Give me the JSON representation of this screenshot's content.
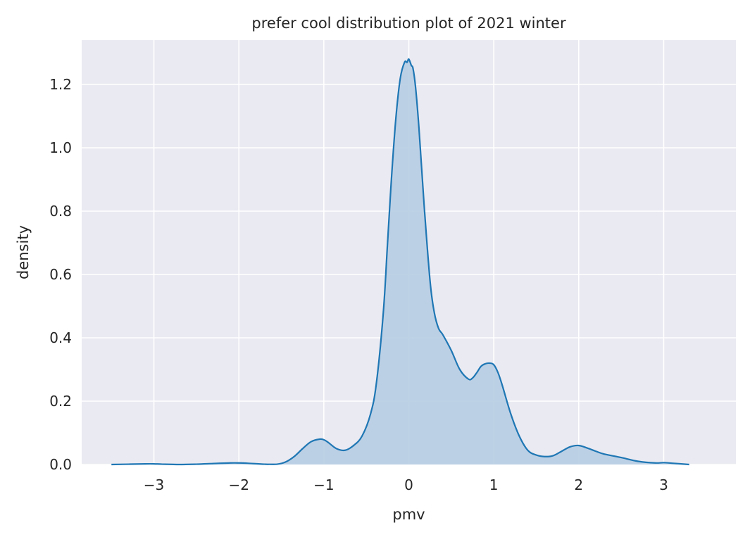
{
  "chart_data": {
    "type": "area",
    "title": "prefer cool distribution plot of 2021 winter",
    "xlabel": "pmv",
    "ylabel": "density",
    "xlim": [
      -3.85,
      3.85
    ],
    "ylim": [
      0,
      1.34
    ],
    "xticks": [
      -3,
      -2,
      -1,
      0,
      1,
      2,
      3
    ],
    "xtick_labels": [
      "−3",
      "−2",
      "−1",
      "0",
      "1",
      "2",
      "3"
    ],
    "yticks": [
      0.0,
      0.2,
      0.4,
      0.6,
      0.8,
      1.0,
      1.2
    ],
    "ytick_labels": [
      "0.0",
      "0.2",
      "0.4",
      "0.6",
      "0.8",
      "1.0",
      "1.2"
    ],
    "grid": true,
    "background_color": "#eaeaf2",
    "line_color": "#1f77b4",
    "fill_color": "#b7cde3",
    "series": [
      {
        "x": [
          -3.5,
          -3.3,
          -3.1,
          -3.0,
          -2.9,
          -2.7,
          -2.5,
          -2.3,
          -2.1,
          -2.0,
          -1.9,
          -1.7,
          -1.55,
          -1.45,
          -1.35,
          -1.25,
          -1.15,
          -1.05,
          -1.0,
          -0.95,
          -0.85,
          -0.75,
          -0.65,
          -0.55,
          -0.45,
          -0.38,
          -0.3,
          -0.25,
          -0.2,
          -0.15,
          -0.1,
          -0.05,
          -0.02,
          0.0,
          0.03,
          0.05,
          0.08,
          0.12,
          0.18,
          0.25,
          0.3,
          0.35,
          0.4,
          0.5,
          0.6,
          0.7,
          0.75,
          0.8,
          0.85,
          0.9,
          0.95,
          1.0,
          1.05,
          1.1,
          1.2,
          1.3,
          1.4,
          1.5,
          1.6,
          1.7,
          1.8,
          1.9,
          2.0,
          2.1,
          2.2,
          2.3,
          2.5,
          2.7,
          2.9,
          3.0,
          3.1,
          3.3
        ],
        "y": [
          0.0,
          0.001,
          0.002,
          0.002,
          0.001,
          0.0,
          0.001,
          0.003,
          0.005,
          0.005,
          0.004,
          0.001,
          0.001,
          0.008,
          0.025,
          0.05,
          0.072,
          0.08,
          0.078,
          0.07,
          0.05,
          0.045,
          0.06,
          0.09,
          0.16,
          0.26,
          0.48,
          0.7,
          0.92,
          1.1,
          1.22,
          1.27,
          1.27,
          1.28,
          1.26,
          1.25,
          1.19,
          1.06,
          0.82,
          0.58,
          0.48,
          0.43,
          0.41,
          0.36,
          0.3,
          0.27,
          0.273,
          0.29,
          0.31,
          0.318,
          0.32,
          0.315,
          0.29,
          0.25,
          0.16,
          0.09,
          0.045,
          0.03,
          0.025,
          0.028,
          0.042,
          0.056,
          0.06,
          0.052,
          0.042,
          0.033,
          0.022,
          0.01,
          0.005,
          0.006,
          0.004,
          0.0
        ]
      }
    ]
  }
}
